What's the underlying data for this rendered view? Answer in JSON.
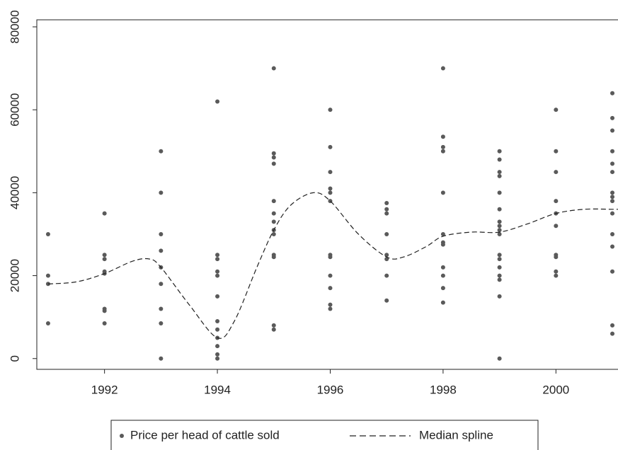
{
  "chart_data": {
    "type": "scatter",
    "xlim": [
      1990.8,
      2001.1
    ],
    "ylim": [
      -2600,
      81700
    ],
    "xticks": [
      1992,
      1994,
      1996,
      1998,
      2000
    ],
    "yticks": [
      0,
      20000,
      40000,
      60000,
      80000
    ],
    "grid": false,
    "legend": "bottom",
    "series": [
      {
        "name": "Price per head of cattle sold",
        "color": "#5a5a5a",
        "kind": "points",
        "x": [
          1991,
          1991,
          1991,
          1991,
          1992,
          1992,
          1992,
          1992,
          1992,
          1992,
          1992,
          1992,
          1993,
          1993,
          1993,
          1993,
          1993,
          1993,
          1993,
          1993,
          1993,
          1994,
          1994,
          1994,
          1994,
          1994,
          1994,
          1994,
          1994,
          1994,
          1994,
          1994,
          1994,
          1995,
          1995,
          1995,
          1995,
          1995,
          1995,
          1995,
          1995,
          1995,
          1995,
          1995,
          1995,
          1995,
          1996,
          1996,
          1996,
          1996,
          1996,
          1996,
          1996,
          1996,
          1996,
          1996,
          1996,
          1996,
          1997,
          1997,
          1997,
          1997,
          1997,
          1997,
          1997,
          1997,
          1998,
          1998,
          1998,
          1998,
          1998,
          1998,
          1998,
          1998,
          1998,
          1998,
          1998,
          1998,
          1999,
          1999,
          1999,
          1999,
          1999,
          1999,
          1999,
          1999,
          1999,
          1999,
          1999,
          1999,
          1999,
          1999,
          1999,
          1999,
          1999,
          2000,
          2000,
          2000,
          2000,
          2000,
          2000,
          2000,
          2000,
          2000,
          2000,
          2001,
          2001,
          2001,
          2001,
          2001,
          2001,
          2001,
          2001,
          2001,
          2001,
          2001,
          2001,
          2001,
          2001,
          2001
        ],
        "values": [
          30000,
          20000,
          18000,
          8500,
          35000,
          25000,
          24000,
          21000,
          20500,
          12000,
          11500,
          8500,
          50000,
          40000,
          30000,
          26000,
          22000,
          18000,
          12000,
          8500,
          0,
          62000,
          25000,
          24000,
          21000,
          20000,
          15000,
          9000,
          7000,
          5000,
          3000,
          1000,
          0,
          70000,
          49500,
          48500,
          47000,
          38000,
          35000,
          33000,
          31000,
          30000,
          25000,
          24500,
          8000,
          7000,
          60000,
          51000,
          45000,
          41000,
          40000,
          38000,
          25000,
          24500,
          20000,
          17000,
          13000,
          12000,
          37500,
          35000,
          30000,
          25000,
          24000,
          20000,
          14000,
          36000,
          70000,
          53500,
          51000,
          50000,
          40000,
          30000,
          28000,
          27500,
          22000,
          20000,
          17000,
          13500,
          50000,
          48000,
          45000,
          44000,
          40000,
          36000,
          33000,
          32000,
          31000,
          30000,
          25000,
          24000,
          22000,
          20000,
          19000,
          15000,
          0,
          60000,
          50000,
          45000,
          38000,
          35000,
          32000,
          25000,
          24500,
          21000,
          20000,
          64000,
          58000,
          55000,
          50000,
          47000,
          45000,
          40000,
          39000,
          38000,
          35000,
          30000,
          27000,
          21000,
          8000,
          6000
        ]
      },
      {
        "name": "Median spline",
        "color": "#222222",
        "kind": "dashed-line",
        "x": [
          1991,
          1991.5,
          1992,
          1992.5,
          1992.8,
          1993,
          1993.5,
          1994,
          1994.3,
          1994.7,
          1995,
          1995.3,
          1995.7,
          1996,
          1996.5,
          1997,
          1997.3,
          1997.7,
          1998,
          1998.5,
          1999,
          1999.5,
          2000,
          2000.5,
          2001,
          2001.1
        ],
        "values": [
          18000,
          18500,
          20500,
          23500,
          24000,
          22000,
          13000,
          5000,
          9000,
          22000,
          31000,
          37000,
          40000,
          38000,
          30000,
          24500,
          24500,
          27000,
          29500,
          30500,
          30500,
          32500,
          35000,
          36000,
          36000,
          36000
        ]
      }
    ]
  }
}
